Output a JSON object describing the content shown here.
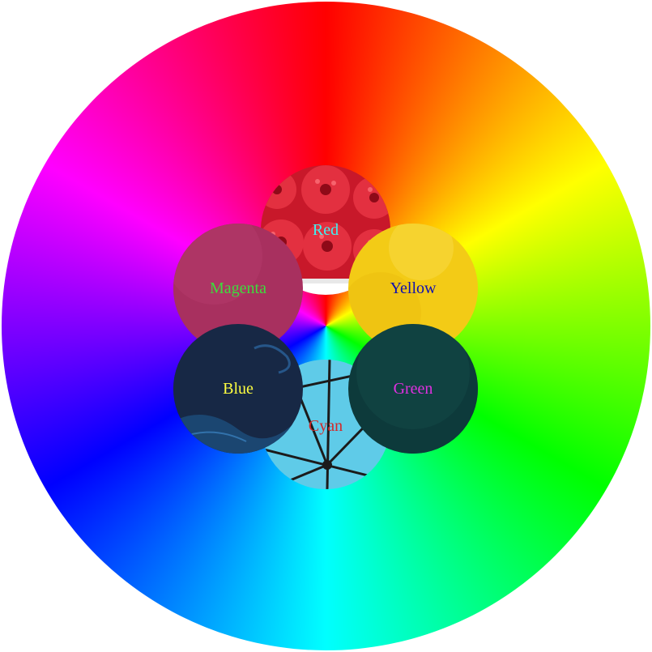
{
  "swatches": [
    {
      "id": "red",
      "label": "Red",
      "label_color": "#40f0f0",
      "fill": "#d81e2a"
    },
    {
      "id": "yellow",
      "label": "Yellow",
      "label_color": "#1010b0",
      "fill": "#f3cb16"
    },
    {
      "id": "magenta",
      "label": "Magenta",
      "label_color": "#3ddc3d",
      "fill": "#a8305f"
    },
    {
      "id": "cyan",
      "label": "Cyan",
      "label_color": "#d42828",
      "fill": "#5fcbe8"
    },
    {
      "id": "blue",
      "label": "Blue",
      "label_color": "#ffff40",
      "fill": "#172845"
    },
    {
      "id": "green",
      "label": "Green",
      "label_color": "#e030e0",
      "fill": "#0d3a3b"
    }
  ],
  "wheel_hues": [
    "#ff0000",
    "#ffff00",
    "#00ff00",
    "#00ffff",
    "#0000ff",
    "#ff00ff"
  ]
}
